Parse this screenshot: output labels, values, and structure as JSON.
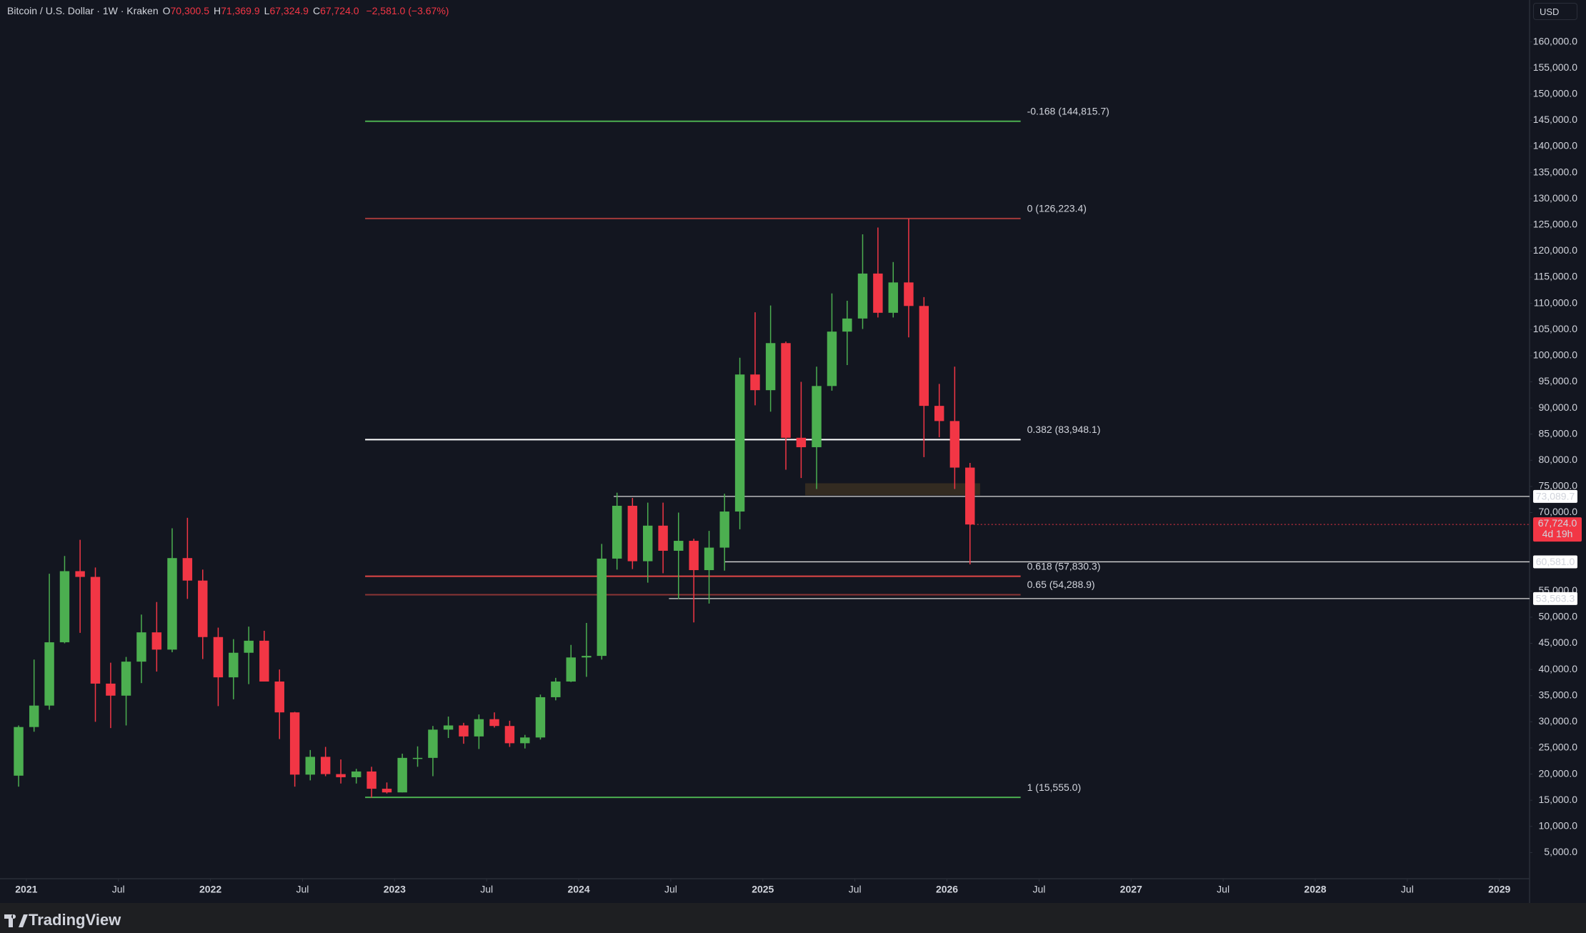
{
  "chart_data": {
    "type": "candlestick",
    "symbol": "Bitcoin / U.S. Dollar · 1W · Kraken",
    "ohlc_header": [
      {
        "key": "O",
        "text": "70,300.5"
      },
      {
        "key": "H",
        "text": "71,369.9"
      },
      {
        "key": "L",
        "text": "67,324.9"
      },
      {
        "key": "C",
        "text": "67,724.0"
      }
    ],
    "change": "−2,581.0 (−3.67%)",
    "currency": "USD",
    "brand": "TradingView",
    "up_color": "#4caf50",
    "down_color": "#f23645",
    "xlim": [
      2020.857,
      2029.164
    ],
    "ylim": [
      0,
      168000
    ],
    "xticks": [
      2021,
      {
        "value": 2021.5,
        "label": "Jul"
      },
      2022,
      {
        "value": 2022.5,
        "label": "Jul"
      },
      2023,
      {
        "value": 2023.5,
        "label": "Jul"
      },
      2024,
      {
        "value": 2024.5,
        "label": "Jul"
      },
      2025,
      {
        "value": 2025.5,
        "label": "Jul"
      },
      2026,
      {
        "value": 2026.5,
        "label": "Jul"
      },
      2027,
      {
        "value": 2027.5,
        "label": "Jul"
      },
      2028,
      {
        "value": 2028.5,
        "label": "Jul"
      },
      2029
    ],
    "yticks": [
      {
        "value": 5000,
        "label": "5,000.0"
      },
      {
        "value": 10000,
        "label": "10,000.0"
      },
      {
        "value": 15000,
        "label": "15,000.0"
      },
      {
        "value": 20000,
        "label": "20,000.0"
      },
      {
        "value": 25000,
        "label": "25,000.0"
      },
      {
        "value": 30000,
        "label": "30,000.0"
      },
      {
        "value": 35000,
        "label": "35,000.0"
      },
      {
        "value": 40000,
        "label": "40,000.0"
      },
      {
        "value": 45000,
        "label": "45,000.0"
      },
      {
        "value": 50000,
        "label": "50,000.0"
      },
      {
        "value": 55000,
        "label": "55,000.0"
      },
      {
        "value": 70000,
        "label": "70,000.0"
      },
      {
        "value": 75000,
        "label": "75,000.0"
      },
      {
        "value": 80000,
        "label": "80,000.0"
      },
      {
        "value": 85000,
        "label": "85,000.0"
      },
      {
        "value": 90000,
        "label": "90,000.0"
      },
      {
        "value": 95000,
        "label": "95,000.0"
      },
      {
        "value": 100000,
        "label": "100,000.0"
      },
      {
        "value": 105000,
        "label": "105,000.0"
      },
      {
        "value": 110000,
        "label": "110,000.0"
      },
      {
        "value": 115000,
        "label": "115,000.0"
      },
      {
        "value": 120000,
        "label": "120,000.0"
      },
      {
        "value": 125000,
        "label": "125,000.0"
      },
      {
        "value": 130000,
        "label": "130,000.0"
      },
      {
        "value": 135000,
        "label": "135,000.0"
      },
      {
        "value": 140000,
        "label": "140,000.0"
      },
      {
        "value": 145000,
        "label": "145,000.0"
      },
      {
        "value": 150000,
        "label": "150,000.0"
      },
      {
        "value": 155000,
        "label": "155,000.0"
      },
      {
        "value": 160000,
        "label": "160,000.0"
      }
    ],
    "x": [
      2020.958,
      2021.042,
      2021.125,
      2021.208,
      2021.292,
      2021.375,
      2021.458,
      2021.542,
      2021.625,
      2021.708,
      2021.792,
      2021.875,
      2021.958,
      2022.042,
      2022.125,
      2022.208,
      2022.292,
      2022.375,
      2022.458,
      2022.542,
      2022.625,
      2022.708,
      2022.792,
      2022.875,
      2022.958,
      2023.042,
      2023.125,
      2023.208,
      2023.292,
      2023.375,
      2023.458,
      2023.542,
      2023.625,
      2023.708,
      2023.792,
      2023.875,
      2023.958,
      2024.042,
      2024.125,
      2024.208,
      2024.292,
      2024.375,
      2024.458,
      2024.542,
      2024.625,
      2024.708,
      2024.792,
      2024.875,
      2024.958,
      2025.042,
      2025.125,
      2025.208,
      2025.292,
      2025.375,
      2025.458,
      2025.542,
      2025.625,
      2025.708,
      2025.792,
      2025.875,
      2025.958,
      2026.042,
      2026.125
    ],
    "open": [
      19700,
      29000,
      33100,
      45200,
      58800,
      57700,
      37300,
      35000,
      41500,
      47100,
      43800,
      61300,
      57000,
      46200,
      38500,
      43200,
      45500,
      37700,
      31800,
      19900,
      23300,
      20000,
      19400,
      20500,
      17200,
      16500,
      23100,
      23100,
      28500,
      29300,
      27200,
      30500,
      29200,
      25900,
      27000,
      34700,
      37700,
      42300,
      42600,
      61200,
      71300,
      60700,
      67500,
      62700,
      64600,
      59000,
      63300,
      70200,
      96400,
      93400,
      102400,
      84300,
      82500,
      94200,
      104600,
      107100,
      115700,
      108200,
      114000,
      109500,
      90400,
      87500,
      78600
    ],
    "high": [
      29300,
      41900,
      58300,
      61700,
      64800,
      59500,
      41300,
      42400,
      50500,
      52900,
      67000,
      69000,
      59100,
      48000,
      45800,
      48200,
      47400,
      40000,
      31900,
      24600,
      25200,
      22800,
      21000,
      21400,
      18400,
      23900,
      25300,
      29200,
      31000,
      29800,
      31400,
      31800,
      30200,
      27500,
      35200,
      38400,
      44700,
      48900,
      64000,
      73800,
      72800,
      71900,
      71900,
      70000,
      65000,
      66500,
      73600,
      99600,
      108300,
      109600,
      102700,
      95000,
      97900,
      111900,
      110500,
      123200,
      124500,
      117900,
      126200,
      111200,
      94600,
      97900,
      79500
    ],
    "low": [
      17600,
      28100,
      32300,
      45000,
      47000,
      30000,
      28800,
      29300,
      37400,
      39600,
      43300,
      53500,
      42000,
      33000,
      34300,
      37200,
      37700,
      26700,
      17600,
      18800,
      19600,
      18200,
      18200,
      15500,
      16300,
      16500,
      21400,
      19600,
      26900,
      25800,
      24800,
      28900,
      25200,
      24900,
      26600,
      34100,
      37600,
      38600,
      41900,
      59100,
      59200,
      56600,
      58400,
      53500,
      49000,
      52600,
      58900,
      66800,
      90500,
      89300,
      78200,
      76600,
      74500,
      93300,
      98200,
      105100,
      107300,
      107300,
      103500,
      80600,
      84400,
      74500,
      60100
    ],
    "close": [
      29000,
      33100,
      45200,
      58800,
      57700,
      37300,
      35000,
      41500,
      47100,
      43800,
      61300,
      57000,
      46200,
      38500,
      43200,
      45500,
      37700,
      31800,
      19900,
      23300,
      20000,
      19400,
      20500,
      17200,
      16500,
      23100,
      23100,
      28500,
      29300,
      27200,
      30500,
      29200,
      25900,
      27000,
      34700,
      37700,
      42300,
      42600,
      61200,
      71300,
      60700,
      67500,
      62700,
      64600,
      59000,
      63300,
      70200,
      96400,
      93400,
      102400,
      84300,
      82500,
      94200,
      104600,
      107100,
      115700,
      108200,
      114000,
      109500,
      90400,
      87500,
      78600,
      67724
    ],
    "fib_x": [
      2022.84,
      2026.4
    ],
    "fib_levels": [
      {
        "label": "-0.168 (144,815.7)",
        "value": 144815.7,
        "color": "#4caf50"
      },
      {
        "label": "0 (126,223.4)",
        "value": 126223.4,
        "color": "#a33a3a"
      },
      {
        "label": "0.382 (83,948.1)",
        "value": 83948.1,
        "color": "#ffffff"
      },
      {
        "label": "0.618 (57,830.3)",
        "value": 57830.3,
        "color": "#e04646"
      },
      {
        "label": "0.65 (54,288.9)",
        "value": 54288.9,
        "color": "#8a3434"
      },
      {
        "label": "1 (15,555.0)",
        "value": 15555.0,
        "color": "#4caf50"
      }
    ],
    "rays": [
      {
        "value": 73089.7,
        "label": "73,089.7",
        "x": 2024.19
      },
      {
        "value": 60581.0,
        "label": "60,581.0",
        "x": 2024.79
      },
      {
        "value": 53563.3,
        "label": "53,563.3",
        "x": 2024.49
      }
    ],
    "zone": {
      "x": [
        2025.23,
        2026.18
      ],
      "y": [
        73300,
        75600
      ],
      "color": "#3a2f22"
    },
    "last_price": {
      "value": 67724.0,
      "label": "67,724.0",
      "countdown": "4d 19h"
    }
  }
}
